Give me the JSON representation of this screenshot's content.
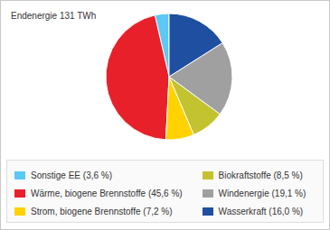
{
  "chart_data": {
    "type": "pie",
    "title": "Endenergie 131 TWh",
    "categories": [
      "Sonstige EE (3,6 %)",
      "Wärme, biogene Brennstoffe (45,6 %)",
      "Strom, biogene Brennstoffe (7,2 %)",
      "Biokraftstoffe (8,5 %)",
      "Windenergie (19,1 %)",
      "Wasserkraft (16,0 %)"
    ],
    "values": [
      3.6,
      45.6,
      7.2,
      8.5,
      19.1,
      16.0
    ],
    "colors": [
      "#5bc8f5",
      "#e8202a",
      "#ffd200",
      "#c3c32f",
      "#a0a0a0",
      "#1e4fa0"
    ]
  }
}
